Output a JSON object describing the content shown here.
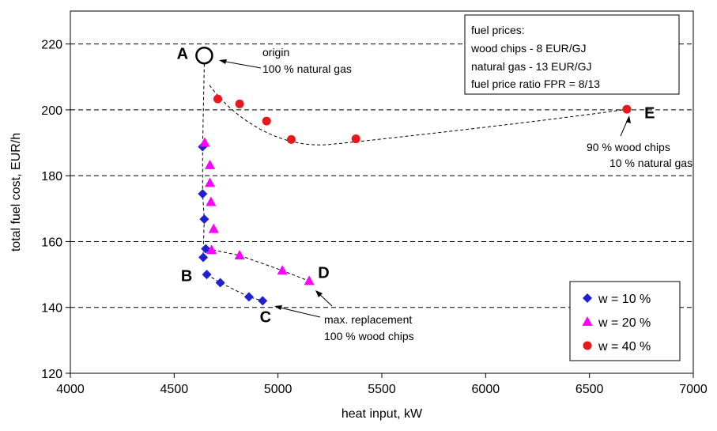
{
  "chart_data": {
    "type": "scatter",
    "title": "",
    "xlabel": "heat input, kW",
    "ylabel": "total fuel cost, EUR/h",
    "xlim": [
      4000,
      7000
    ],
    "ylim": [
      120,
      230
    ],
    "x_ticks": [
      "4000",
      "4500",
      "5000",
      "5500",
      "6000",
      "6500",
      "7000"
    ],
    "y_ticks": [
      "120",
      "140",
      "160",
      "180",
      "200",
      "220"
    ],
    "grid": "horizontal dashed",
    "legend_position": "bottom-right",
    "series": [
      {
        "name": "w = 10 %",
        "marker": "diamond",
        "color": "#1f1fd6",
        "points": [
          {
            "x": 4637,
            "y": 188.8
          },
          {
            "x": 4637,
            "y": 174.5
          },
          {
            "x": 4645,
            "y": 166.8
          },
          {
            "x": 4652,
            "y": 157.8
          },
          {
            "x": 4640,
            "y": 155.2
          },
          {
            "x": 4657,
            "y": 150.0
          },
          {
            "x": 4722,
            "y": 147.5
          },
          {
            "x": 4860,
            "y": 143.2
          },
          {
            "x": 4926,
            "y": 142.0
          }
        ]
      },
      {
        "name": "w = 20 %",
        "marker": "triangle",
        "color": "#ff00ff",
        "points": [
          {
            "x": 4647,
            "y": 190.0
          },
          {
            "x": 4672,
            "y": 183.2
          },
          {
            "x": 4672,
            "y": 177.8
          },
          {
            "x": 4677,
            "y": 172.0
          },
          {
            "x": 4690,
            "y": 163.8
          },
          {
            "x": 4680,
            "y": 157.4
          },
          {
            "x": 4815,
            "y": 155.8
          },
          {
            "x": 5021,
            "y": 151.2
          },
          {
            "x": 5150,
            "y": 148.0
          }
        ]
      },
      {
        "name": "w = 40 %",
        "marker": "circle",
        "color": "#e8191c",
        "points": [
          {
            "x": 4710,
            "y": 203.3
          },
          {
            "x": 4815,
            "y": 201.8
          },
          {
            "x": 4945,
            "y": 196.6
          },
          {
            "x": 5064,
            "y": 191.0
          },
          {
            "x": 5375,
            "y": 191.2
          },
          {
            "x": 6680,
            "y": 200.2
          }
        ]
      }
    ],
    "origin_point": {
      "x": 4645,
      "y": 216.5
    },
    "point_labels": [
      {
        "label": "A",
        "x": 4540,
        "y": 215.5
      },
      {
        "label": "B",
        "x": 4560,
        "y": 148.0
      },
      {
        "label": "C",
        "x": 4940,
        "y": 135.5
      },
      {
        "label": "D",
        "x": 5220,
        "y": 149.0
      },
      {
        "label": "E",
        "x": 6790,
        "y": 197.5
      }
    ],
    "annotations": [
      {
        "lines": [
          "origin",
          "100 % natural gas"
        ]
      },
      {
        "lines": [
          "max. replacement",
          "100 % wood chips"
        ]
      },
      {
        "lines": [
          "90 % wood chips",
          "10 % natural gas"
        ]
      }
    ],
    "info_box": {
      "lines": [
        "fuel prices:",
        "wood chips - 8 EUR/GJ",
        "natural gas - 13 EUR/GJ",
        "fuel price ratio FPR = 8/13"
      ]
    }
  }
}
